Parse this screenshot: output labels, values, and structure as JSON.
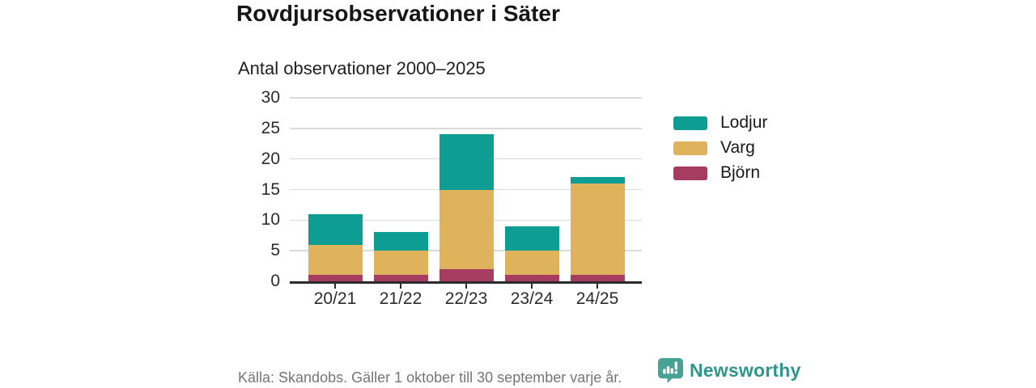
{
  "header": {
    "title": "Rovdjursobservationer i Säter",
    "subtitle": "Antal observationer 2000–2025"
  },
  "chart_data": {
    "type": "bar",
    "stacked": true,
    "title": "Rovdjursobservationer i Säter",
    "subtitle": "Antal observationer 2000–2025",
    "categories": [
      "20/21",
      "21/22",
      "22/23",
      "23/24",
      "24/25"
    ],
    "series": [
      {
        "name": "Björn",
        "color": "#a63c60",
        "values": [
          1,
          1,
          2,
          1,
          1
        ]
      },
      {
        "name": "Varg",
        "color": "#dfb35c",
        "values": [
          5,
          4,
          13,
          4,
          15
        ]
      },
      {
        "name": "Lodjur",
        "color": "#0d9d93",
        "values": [
          5,
          3,
          9,
          4,
          1
        ]
      }
    ],
    "totals": [
      11,
      8,
      24,
      9,
      17
    ],
    "xlabel": "",
    "ylabel": "",
    "ylim": [
      0,
      30
    ],
    "yticks": [
      0,
      5,
      10,
      15,
      20,
      25,
      30
    ],
    "grid": true,
    "legend_position": "right",
    "legend_order": [
      "Lodjur",
      "Varg",
      "Björn"
    ]
  },
  "footer": {
    "source": "Källa: Skandobs. Gäller 1 oktober till 30 september varje år.",
    "brand": "Newsworthy"
  },
  "colors": {
    "lodjur": "#0d9d93",
    "varg": "#dfb35c",
    "bjorn": "#a63c60",
    "axis": "#2b2b2b",
    "gridline": "#dadada",
    "source_text": "#757575",
    "brand_teal": "#2f968b",
    "logo_bubble": "#47a296"
  },
  "icons": {
    "newsworthy_logo": "speech-bubble-bar-chart-icon"
  }
}
